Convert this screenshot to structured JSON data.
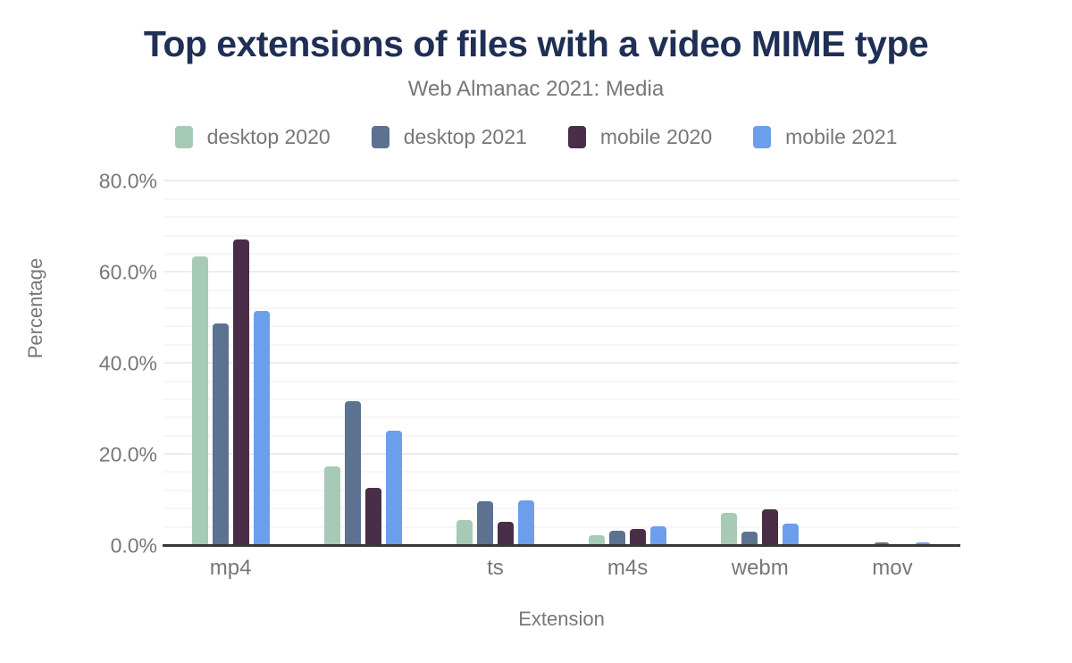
{
  "title": "Top extensions of files with a video MIME type",
  "subtitle": "Web Almanac 2021: Media",
  "colors": {
    "title_text": "#1f2f55",
    "muted_text": "#75787b",
    "axis_line": "#37383a",
    "grid_major": "#ececee",
    "grid_minor": "#f6f6f7",
    "background": "#ffffff"
  },
  "chart_data": {
    "type": "bar",
    "title": "Top extensions of files with a video MIME type",
    "subtitle": "Web Almanac 2021: Media",
    "xlabel": "Extension",
    "ylabel": "Percentage",
    "categories": [
      "mp4",
      "",
      "ts",
      "m4s",
      "webm",
      "mov"
    ],
    "series": [
      {
        "name": "desktop 2020",
        "color": "#a6cab6",
        "values": [
          63.6,
          17.4,
          5.7,
          2.3,
          7.3,
          0.1
        ]
      },
      {
        "name": "desktop 2021",
        "color": "#5d7191",
        "values": [
          48.8,
          31.7,
          9.8,
          3.4,
          3.1,
          0.8
        ]
      },
      {
        "name": "mobile 2020",
        "color": "#4a2e47",
        "values": [
          67.3,
          12.7,
          5.4,
          3.7,
          8.1,
          0.1
        ]
      },
      {
        "name": "mobile 2021",
        "color": "#6d9eeb",
        "values": [
          51.6,
          25.4,
          10.1,
          4.3,
          5.0,
          0.8
        ]
      }
    ],
    "ylim": [
      0,
      84
    ],
    "yticks": [
      0,
      20,
      40,
      60,
      80
    ],
    "ytick_labels": [
      "0.0%",
      "20.0%",
      "40.0%",
      "60.0%",
      "80.0%"
    ],
    "minor_grid_interval": 4,
    "grid": true,
    "legend_position": "top",
    "unit": "percent"
  }
}
